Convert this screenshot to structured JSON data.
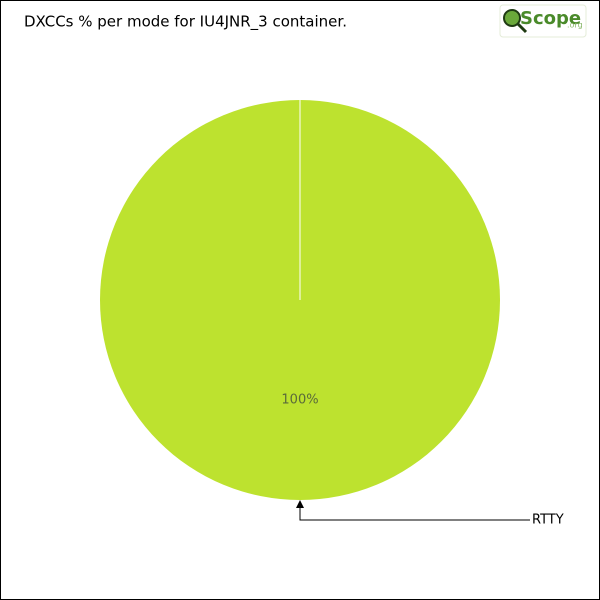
{
  "chart_data": {
    "type": "pie",
    "title": "DXCCs % per mode for IU4JNR_3 container.",
    "categories": [
      "RTTY"
    ],
    "values": [
      100
    ],
    "value_labels": [
      "100%"
    ],
    "colors": [
      "#bde22f"
    ]
  },
  "logo": {
    "name": "Scope",
    "suffix": ".org"
  }
}
